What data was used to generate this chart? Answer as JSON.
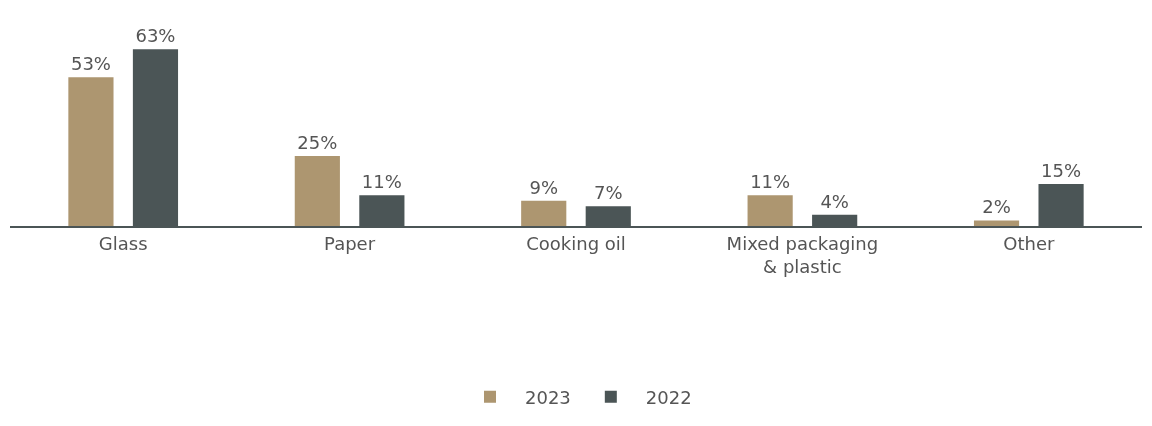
{
  "chart_data": {
    "type": "bar",
    "categories": [
      "Glass",
      "Paper",
      "Cooking oil",
      "Mixed packaging & plastic",
      "Other"
    ],
    "series": [
      {
        "name": "2023",
        "color": "#ad9670",
        "values": [
          53,
          25,
          9,
          11,
          2
        ],
        "value_labels": [
          "53%",
          "25%",
          "9%",
          "11%",
          "2%"
        ]
      },
      {
        "name": "2022",
        "color": "#4b5556",
        "values": [
          63,
          11,
          7,
          4,
          15
        ],
        "value_labels": [
          "63%",
          "11%",
          "7%",
          "4%",
          "15%"
        ]
      }
    ],
    "legend": "bottom"
  }
}
